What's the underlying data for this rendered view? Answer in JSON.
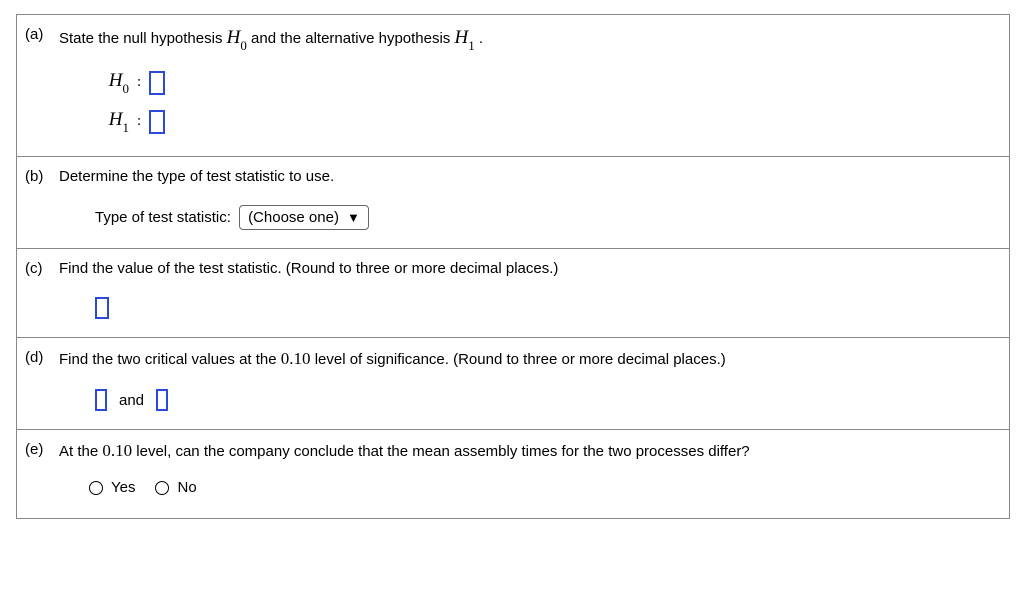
{
  "question": {
    "parts": {
      "a": {
        "label": "(a)",
        "prompt_pre": "State the null hypothesis ",
        "h0_var": "H",
        "h0_sub": "0",
        "prompt_mid": " and the alternative hypothesis ",
        "h1_var": "H",
        "h1_sub": "1",
        "prompt_post": " .",
        "rows": {
          "h0": {
            "var": "H",
            "sub": "0",
            "colon": ":"
          },
          "h1": {
            "var": "H",
            "sub": "1",
            "colon": ":"
          }
        }
      },
      "b": {
        "label": "(b)",
        "prompt": "Determine the type of test statistic to use.",
        "field_label": "Type of test statistic:",
        "select_placeholder": "(Choose one)"
      },
      "c": {
        "label": "(c)",
        "prompt": "Find the value of the test statistic. (Round to three or more decimal places.)"
      },
      "d": {
        "label": "(d)",
        "prompt_pre": "Find the two critical values at the ",
        "alpha": "0.10",
        "prompt_post": " level of significance. (Round to three or more decimal places.)",
        "and_text": "and"
      },
      "e": {
        "label": "(e)",
        "prompt_pre": "At the ",
        "alpha": "0.10",
        "prompt_post": " level, can the company conclude that the mean assembly times for the two processes differ?",
        "options": {
          "yes": "Yes",
          "no": "No"
        }
      }
    }
  },
  "style": {
    "border_color": "#888888",
    "accent_box_border": "#2a4bd7",
    "font_base": "Verdana",
    "font_math": "Georgia"
  }
}
